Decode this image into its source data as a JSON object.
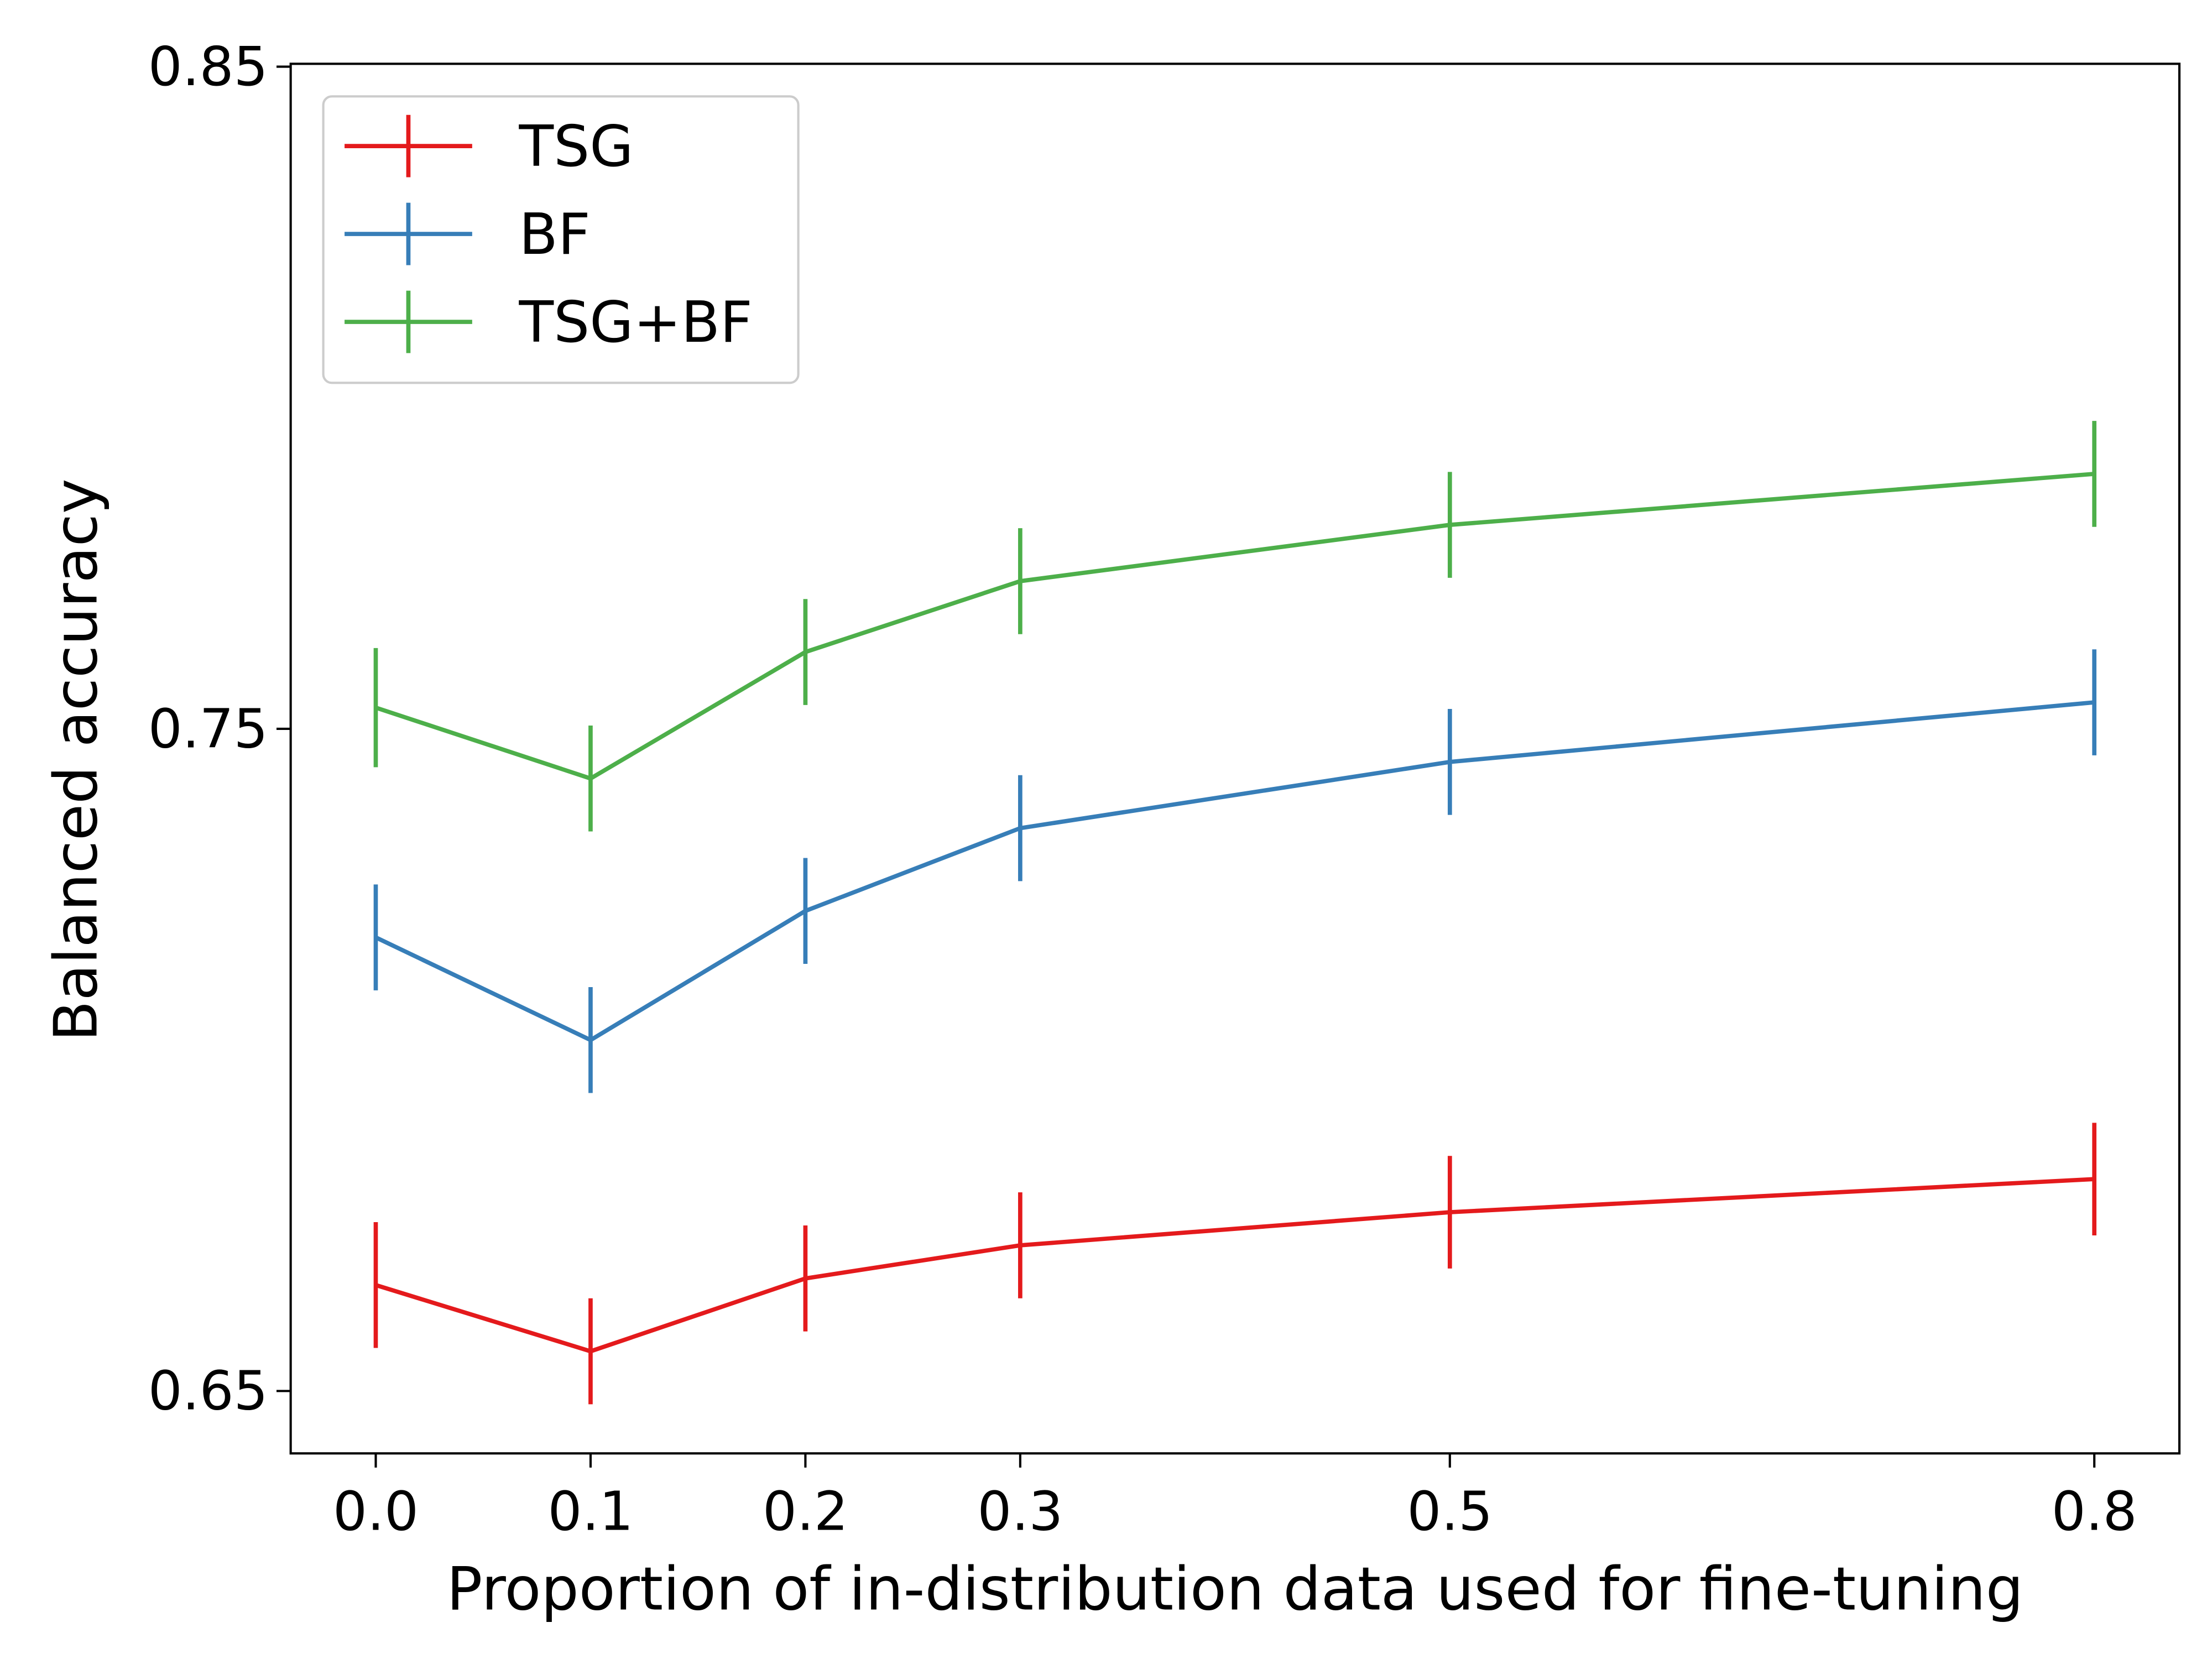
{
  "chart_data": {
    "type": "line",
    "title": "",
    "xlabel": "Proportion of in-distribution data used for fine-tuning",
    "ylabel": "Balanced accuracy",
    "x": [
      0.0,
      0.1,
      0.2,
      0.3,
      0.5,
      0.8
    ],
    "xticks": [
      "0.0",
      "0.1",
      "0.2",
      "0.3",
      "0.5",
      "0.8"
    ],
    "yticks": [
      "0.65",
      "0.75",
      "0.85"
    ],
    "xlim": [
      -0.04,
      0.84
    ],
    "ylim": [
      0.64,
      0.85
    ],
    "grid": false,
    "legend_position": "top-left",
    "error_bars": true,
    "series": [
      {
        "name": "TSG",
        "color": "#e41a1c",
        "values": [
          0.666,
          0.656,
          0.667,
          0.672,
          0.677,
          0.682
        ],
        "errors": [
          0.0095,
          0.008,
          0.008,
          0.008,
          0.0085,
          0.0085
        ]
      },
      {
        "name": "BF",
        "color": "#377eb8",
        "values": [
          0.7185,
          0.703,
          0.7225,
          0.735,
          0.745,
          0.754
        ],
        "errors": [
          0.008,
          0.008,
          0.008,
          0.008,
          0.008,
          0.008
        ]
      },
      {
        "name": "TSG+BF",
        "color": "#4daf4a",
        "values": [
          0.7532,
          0.7425,
          0.7616,
          0.7723,
          0.7808,
          0.7885
        ],
        "errors": [
          0.009,
          0.008,
          0.008,
          0.008,
          0.008,
          0.008
        ]
      }
    ]
  }
}
